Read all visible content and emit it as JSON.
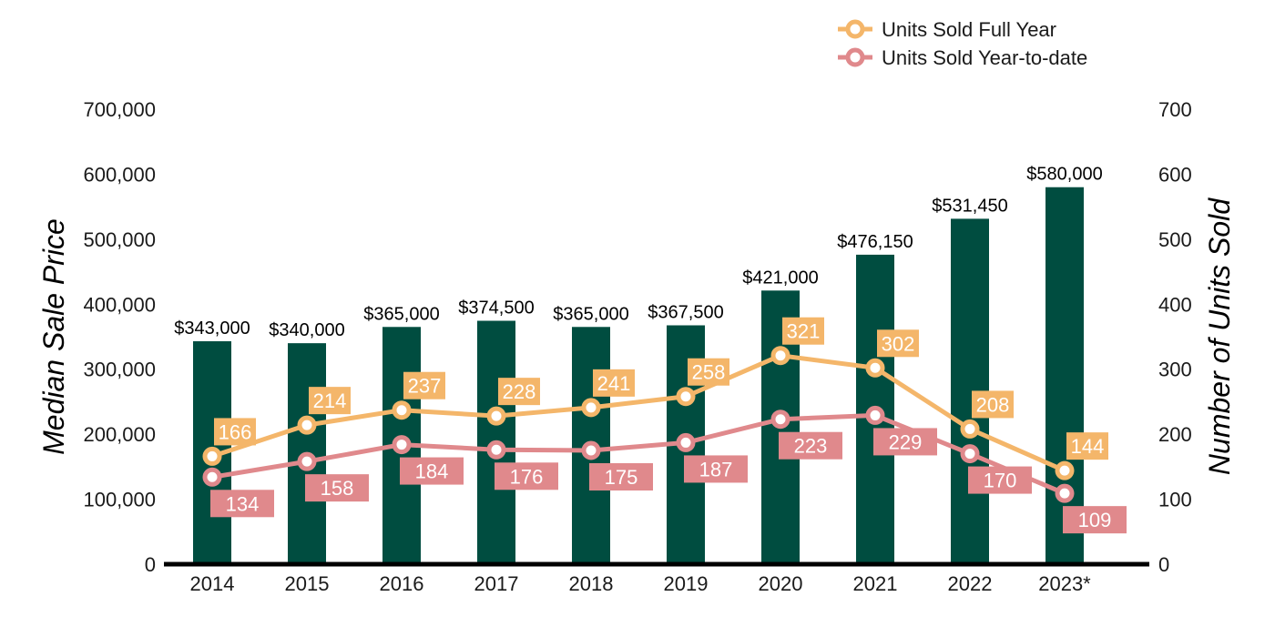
{
  "chart_data": {
    "type": "bar",
    "categories": [
      "2014",
      "2015",
      "2016",
      "2017",
      "2018",
      "2019",
      "2020",
      "2021",
      "2022",
      "2023*"
    ],
    "series": [
      {
        "kind": "bar",
        "axis": "left",
        "color": "#004d40",
        "values": [
          343000,
          340000,
          365000,
          374500,
          365000,
          367500,
          421000,
          476150,
          531450,
          580000
        ],
        "labels": [
          "$343,000",
          "$340,000",
          "$365,000",
          "$374,500",
          "$365,000",
          "$367,500",
          "$421,000",
          "$476,150",
          "$531,450",
          "$580,000"
        ]
      },
      {
        "kind": "line",
        "axis": "right",
        "name": "Units Sold Full Year",
        "color": "#f4b66a",
        "values": [
          166,
          214,
          237,
          228,
          241,
          258,
          321,
          302,
          208,
          144
        ]
      },
      {
        "kind": "line",
        "axis": "right",
        "name": "Units Sold Year-to-date",
        "color": "#e0898c",
        "values": [
          134,
          158,
          184,
          176,
          175,
          187,
          223,
          229,
          170,
          109
        ]
      }
    ],
    "ylabel": "Median Sale Price",
    "y2label": "Number of Units Sold",
    "ylim": [
      0,
      700000
    ],
    "y2lim": [
      0,
      700
    ],
    "yticks": [
      "0",
      "100,000",
      "200,000",
      "300,000",
      "400,000",
      "500,000",
      "600,000",
      "700,000"
    ],
    "y2ticks": [
      "0",
      "100",
      "200",
      "300",
      "400",
      "500",
      "600",
      "700"
    ],
    "grid": false,
    "legend": "top-right"
  }
}
